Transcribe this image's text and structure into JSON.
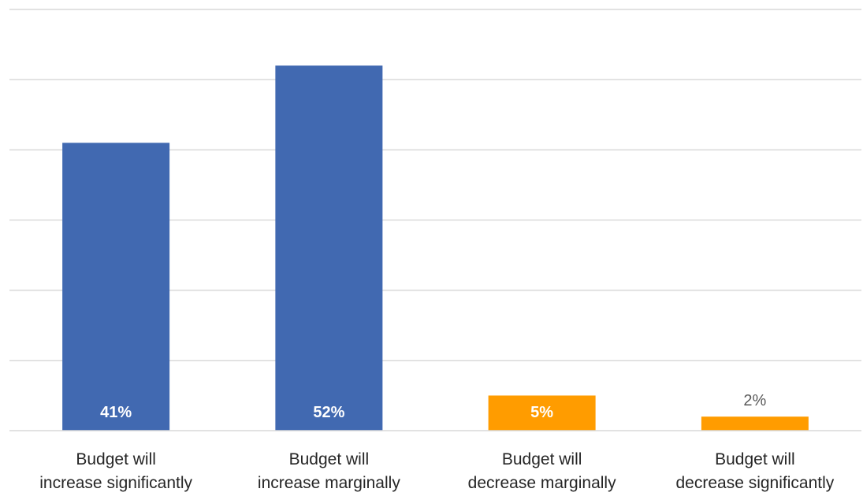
{
  "chart_data": {
    "type": "bar",
    "title": "",
    "xlabel": "",
    "ylabel": "",
    "categories": [
      [
        "Budget will",
        "increase significantly"
      ],
      [
        "Budget will",
        "increase marginally"
      ],
      [
        "Budget will",
        "decrease marginally"
      ],
      [
        "Budget will",
        "decrease significantly"
      ]
    ],
    "values": [
      41,
      52,
      5,
      2
    ],
    "data_labels": [
      "41%",
      "52%",
      "5%",
      "2%"
    ],
    "bar_colors": [
      "#4169b1",
      "#4169b1",
      "#ff9c00",
      "#ff9c00"
    ],
    "ylim": [
      0,
      60
    ],
    "gridline_step": 10,
    "grid": true,
    "y_axis_labels_visible": false,
    "legend": "none"
  },
  "colors": {
    "increase": "#4169b1",
    "decrease": "#ff9c00",
    "gridline": "#d9d9d9",
    "axis": "#d9d9d9"
  }
}
